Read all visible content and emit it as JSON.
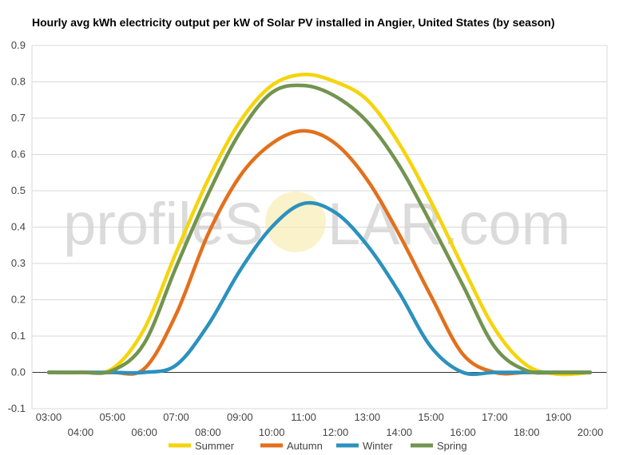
{
  "chart_data": {
    "type": "line",
    "title": "Hourly avg kWh electricity output per kW of Solar PV installed in Angier, United States (by season)",
    "xlabel": "",
    "ylabel": "",
    "ylim": [
      -0.1,
      0.9
    ],
    "yticks": [
      "-0.1",
      "0.0",
      "0.1",
      "0.2",
      "0.3",
      "0.4",
      "0.5",
      "0.6",
      "0.7",
      "0.8",
      "0.9"
    ],
    "categories": [
      "03:00",
      "04:00",
      "05:00",
      "06:00",
      "07:00",
      "08:00",
      "09:00",
      "10:00",
      "11:00",
      "12:00",
      "13:00",
      "14:00",
      "15:00",
      "16:00",
      "17:00",
      "18:00",
      "19:00",
      "20:00"
    ],
    "grid": true,
    "legend_position": "bottom",
    "series": [
      {
        "name": "Summer",
        "color": "#f5d40c",
        "values": [
          0.0,
          0.0,
          0.01,
          0.12,
          0.33,
          0.53,
          0.69,
          0.79,
          0.82,
          0.8,
          0.75,
          0.63,
          0.47,
          0.29,
          0.12,
          0.02,
          -0.005,
          0.0
        ]
      },
      {
        "name": "Autumn",
        "color": "#e2701d",
        "values": [
          0.0,
          0.0,
          0.0,
          0.01,
          0.16,
          0.38,
          0.54,
          0.63,
          0.665,
          0.63,
          0.53,
          0.38,
          0.21,
          0.05,
          0.0,
          0.0,
          0.0,
          0.0
        ]
      },
      {
        "name": "Winter",
        "color": "#2c91bd",
        "values": [
          0.0,
          0.0,
          0.0,
          0.0,
          0.02,
          0.13,
          0.28,
          0.4,
          0.465,
          0.44,
          0.35,
          0.22,
          0.07,
          0.0,
          0.0,
          0.0,
          0.0,
          0.0
        ]
      },
      {
        "name": "Spring",
        "color": "#72944f",
        "values": [
          0.0,
          0.0,
          0.005,
          0.08,
          0.29,
          0.49,
          0.66,
          0.77,
          0.79,
          0.76,
          0.69,
          0.57,
          0.41,
          0.24,
          0.07,
          0.005,
          0.0,
          0.0
        ]
      }
    ]
  },
  "watermark": {
    "left": "profileS",
    "right": "LAR.com"
  }
}
